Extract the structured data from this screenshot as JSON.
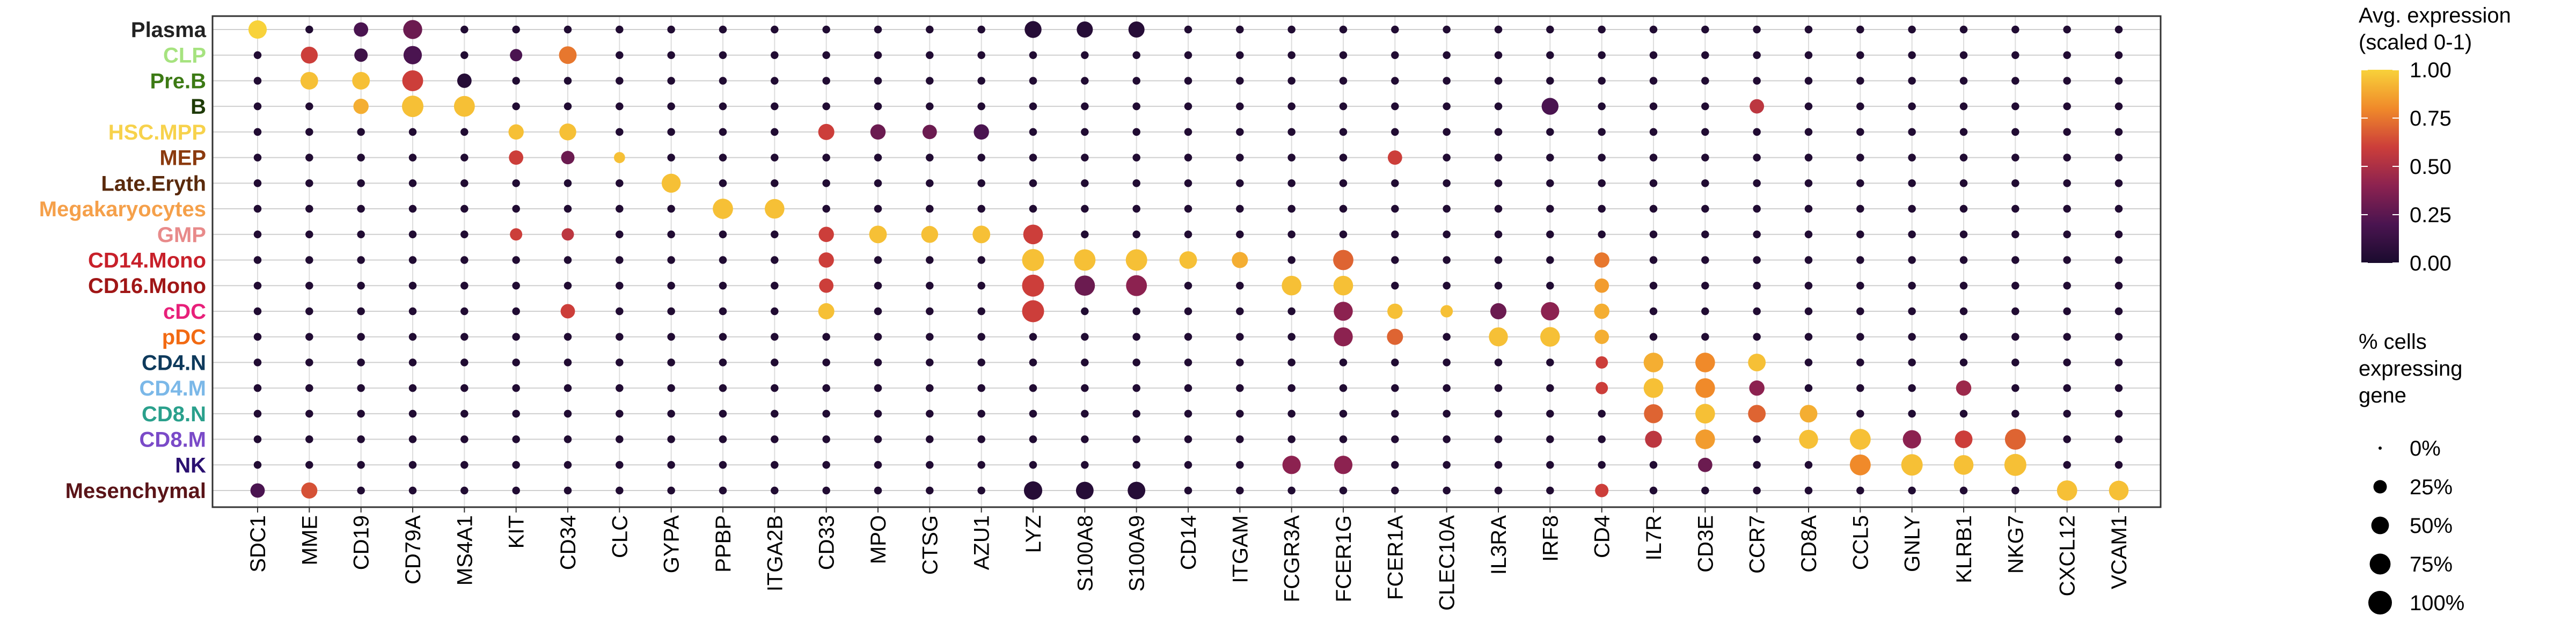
{
  "chart_data": {
    "type": "dotplot",
    "genes": [
      "SDC1",
      "MME",
      "CD19",
      "CD79A",
      "MS4A1",
      "KIT",
      "CD34",
      "CLC",
      "GYPA",
      "PPBP",
      "ITGA2B",
      "CD33",
      "MPO",
      "CTSG",
      "AZU1",
      "LYZ",
      "S100A8",
      "S100A9",
      "CD14",
      "ITGAM",
      "FCGR3A",
      "FCER1G",
      "FCER1A",
      "CLEC10A",
      "IL3RA",
      "IRF8",
      "CD4",
      "IL7R",
      "CD3E",
      "CCR7",
      "CD8A",
      "CCL5",
      "GNLY",
      "KLRB1",
      "NKG7",
      "CXCL12",
      "VCAM1"
    ],
    "cell_types": [
      {
        "name": "Plasma",
        "color": "#222222"
      },
      {
        "name": "CLP",
        "color": "#A6E37F"
      },
      {
        "name": "Pre.B",
        "color": "#3C7A14"
      },
      {
        "name": "B",
        "color": "#1E3A06"
      },
      {
        "name": "HSC.MPP",
        "color": "#F7D24C"
      },
      {
        "name": "MEP",
        "color": "#8B3A0E"
      },
      {
        "name": "Late.Eryth",
        "color": "#5A2A0C"
      },
      {
        "name": "Megakaryocytes",
        "color": "#F5A04A"
      },
      {
        "name": "GMP",
        "color": "#E88A8A"
      },
      {
        "name": "CD14.Mono",
        "color": "#C8202A"
      },
      {
        "name": "CD16.Mono",
        "color": "#A01616"
      },
      {
        "name": "cDC",
        "color": "#E8207A"
      },
      {
        "name": "pDC",
        "color": "#F26A12"
      },
      {
        "name": "CD4.N",
        "color": "#0E3A5C"
      },
      {
        "name": "CD4.M",
        "color": "#7BB8E8"
      },
      {
        "name": "CD8.N",
        "color": "#2AA08C"
      },
      {
        "name": "CD8.M",
        "color": "#7A4AC8"
      },
      {
        "name": "NK",
        "color": "#2A1070"
      },
      {
        "name": "Mesenchymal",
        "color": "#5A1418"
      }
    ],
    "points": [
      [
        "Plasma",
        "SDC1",
        1.0,
        0.55
      ],
      [
        "Plasma",
        "CD79A",
        0.3,
        0.6
      ],
      [
        "Plasma",
        "CD19",
        0.2,
        0.3
      ],
      [
        "Plasma",
        "LYZ",
        0.05,
        0.45
      ],
      [
        "Plasma",
        "S100A8",
        0.05,
        0.4
      ],
      [
        "Plasma",
        "S100A9",
        0.05,
        0.4
      ],
      [
        "CLP",
        "MME",
        0.6,
        0.45
      ],
      [
        "CLP",
        "CD79A",
        0.2,
        0.55
      ],
      [
        "CLP",
        "CD34",
        0.75,
        0.5
      ],
      [
        "CLP",
        "CD19",
        0.15,
        0.25
      ],
      [
        "CLP",
        "KIT",
        0.2,
        0.2
      ],
      [
        "Pre.B",
        "MME",
        0.95,
        0.5
      ],
      [
        "Pre.B",
        "CD19",
        0.95,
        0.5
      ],
      [
        "Pre.B",
        "CD79A",
        0.6,
        0.75
      ],
      [
        "Pre.B",
        "MS4A1",
        0.05,
        0.3
      ],
      [
        "B",
        "CD19",
        0.9,
        0.35
      ],
      [
        "B",
        "CD79A",
        0.95,
        0.8
      ],
      [
        "B",
        "MS4A1",
        0.95,
        0.75
      ],
      [
        "B",
        "IRF8",
        0.2,
        0.45
      ],
      [
        "B",
        "CCR7",
        0.55,
        0.3
      ],
      [
        "HSC.MPP",
        "KIT",
        0.95,
        0.35
      ],
      [
        "HSC.MPP",
        "CD34",
        0.95,
        0.45
      ],
      [
        "HSC.MPP",
        "CD33",
        0.6,
        0.4
      ],
      [
        "HSC.MPP",
        "MPO",
        0.3,
        0.35
      ],
      [
        "HSC.MPP",
        "CTSG",
        0.3,
        0.3
      ],
      [
        "HSC.MPP",
        "AZU1",
        0.2,
        0.35
      ],
      [
        "MEP",
        "KIT",
        0.6,
        0.3
      ],
      [
        "MEP",
        "CD34",
        0.3,
        0.25
      ],
      [
        "MEP",
        "CLC",
        0.95,
        0.15
      ],
      [
        "MEP",
        "FCER1A",
        0.6,
        0.3
      ],
      [
        "Late.Eryth",
        "GYPA",
        0.95,
        0.6
      ],
      [
        "Megakaryocytes",
        "PPBP",
        0.95,
        0.7
      ],
      [
        "Megakaryocytes",
        "ITGA2B",
        0.95,
        0.65
      ],
      [
        "GMP",
        "CD33",
        0.6,
        0.35
      ],
      [
        "GMP",
        "MPO",
        0.95,
        0.5
      ],
      [
        "GMP",
        "CTSG",
        0.95,
        0.45
      ],
      [
        "GMP",
        "AZU1",
        0.95,
        0.5
      ],
      [
        "GMP",
        "LYZ",
        0.6,
        0.65
      ],
      [
        "GMP",
        "KIT",
        0.6,
        0.2
      ],
      [
        "GMP",
        "CD34",
        0.55,
        0.2
      ],
      [
        "CD14.Mono",
        "LYZ",
        0.95,
        0.85
      ],
      [
        "CD14.Mono",
        "S100A8",
        0.95,
        0.8
      ],
      [
        "CD14.Mono",
        "S100A9",
        0.95,
        0.8
      ],
      [
        "CD14.Mono",
        "CD14",
        0.95,
        0.5
      ],
      [
        "CD14.Mono",
        "ITGAM",
        0.9,
        0.4
      ],
      [
        "CD14.Mono",
        "FCER1G",
        0.7,
        0.7
      ],
      [
        "CD14.Mono",
        "CD4",
        0.75,
        0.35
      ],
      [
        "CD14.Mono",
        "CD33",
        0.6,
        0.35
      ],
      [
        "CD16.Mono",
        "LYZ",
        0.6,
        0.85
      ],
      [
        "CD16.Mono",
        "S100A8",
        0.3,
        0.7
      ],
      [
        "CD16.Mono",
        "S100A9",
        0.4,
        0.75
      ],
      [
        "CD16.Mono",
        "FCGR3A",
        0.95,
        0.65
      ],
      [
        "CD16.Mono",
        "FCER1G",
        0.95,
        0.65
      ],
      [
        "CD16.Mono",
        "CD4",
        0.85,
        0.3
      ],
      [
        "CD16.Mono",
        "CD33",
        0.6,
        0.3
      ],
      [
        "cDC",
        "LYZ",
        0.6,
        0.85
      ],
      [
        "cDC",
        "CD33",
        0.95,
        0.4
      ],
      [
        "cDC",
        "FCER1A",
        0.95,
        0.35
      ],
      [
        "cDC",
        "CLEC10A",
        0.95,
        0.2
      ],
      [
        "cDC",
        "FCER1G",
        0.4,
        0.6
      ],
      [
        "cDC",
        "IRF8",
        0.4,
        0.55
      ],
      [
        "cDC",
        "CD4",
        0.9,
        0.35
      ],
      [
        "cDC",
        "CD34",
        0.6,
        0.3
      ],
      [
        "cDC",
        "IL3RA",
        0.3,
        0.4
      ],
      [
        "pDC",
        "IL3RA",
        0.95,
        0.6
      ],
      [
        "pDC",
        "IRF8",
        0.95,
        0.65
      ],
      [
        "pDC",
        "FCER1A",
        0.7,
        0.4
      ],
      [
        "pDC",
        "FCER1G",
        0.4,
        0.6
      ],
      [
        "pDC",
        "CD4",
        0.9,
        0.3
      ],
      [
        "CD4.N",
        "IL7R",
        0.9,
        0.65
      ],
      [
        "CD4.N",
        "CD3E",
        0.8,
        0.65
      ],
      [
        "CD4.N",
        "CCR7",
        0.95,
        0.5
      ],
      [
        "CD4.N",
        "CD4",
        0.6,
        0.2
      ],
      [
        "CD4.M",
        "IL7R",
        0.95,
        0.65
      ],
      [
        "CD4.M",
        "CD3E",
        0.8,
        0.65
      ],
      [
        "CD4.M",
        "CCR7",
        0.4,
        0.35
      ],
      [
        "CD4.M",
        "KLRB1",
        0.45,
        0.35
      ],
      [
        "CD4.M",
        "CD4",
        0.6,
        0.2
      ],
      [
        "CD8.N",
        "IL7R",
        0.7,
        0.6
      ],
      [
        "CD8.N",
        "CD3E",
        0.95,
        0.65
      ],
      [
        "CD8.N",
        "CCR7",
        0.7,
        0.5
      ],
      [
        "CD8.N",
        "CD8A",
        0.9,
        0.5
      ],
      [
        "CD8.M",
        "IL7R",
        0.55,
        0.45
      ],
      [
        "CD8.M",
        "CD3E",
        0.85,
        0.65
      ],
      [
        "CD8.M",
        "CD8A",
        0.95,
        0.6
      ],
      [
        "CD8.M",
        "CCL5",
        0.95,
        0.75
      ],
      [
        "CD8.M",
        "GNLY",
        0.4,
        0.55
      ],
      [
        "CD8.M",
        "KLRB1",
        0.6,
        0.5
      ],
      [
        "CD8.M",
        "NKG7",
        0.7,
        0.75
      ],
      [
        "NK",
        "CCL5",
        0.8,
        0.75
      ],
      [
        "NK",
        "GNLY",
        0.95,
        0.8
      ],
      [
        "NK",
        "KLRB1",
        0.95,
        0.65
      ],
      [
        "NK",
        "NKG7",
        0.95,
        0.85
      ],
      [
        "NK",
        "FCGR3A",
        0.4,
        0.55
      ],
      [
        "NK",
        "FCER1G",
        0.4,
        0.55
      ],
      [
        "NK",
        "CD3E",
        0.3,
        0.3
      ],
      [
        "Mesenchymal",
        "CXCL12",
        0.95,
        0.7
      ],
      [
        "Mesenchymal",
        "VCAM1",
        0.95,
        0.65
      ],
      [
        "Mesenchymal",
        "MME",
        0.65,
        0.4
      ],
      [
        "Mesenchymal",
        "SDC1",
        0.2,
        0.3
      ],
      [
        "Mesenchymal",
        "LYZ",
        0.05,
        0.55
      ],
      [
        "Mesenchymal",
        "S100A8",
        0.05,
        0.5
      ],
      [
        "Mesenchymal",
        "S100A9",
        0.05,
        0.5
      ],
      [
        "Mesenchymal",
        "CD4",
        0.6,
        0.25
      ]
    ],
    "background_dot": {
      "value": 0.03,
      "pct": 0.05
    },
    "color_legend": {
      "title_lines": [
        "Avg. expression",
        "(scaled 0-1)"
      ],
      "ticks": [
        "1.00",
        "0.75",
        "0.50",
        "0.25",
        "0.00"
      ],
      "range": [
        0,
        1
      ],
      "colormap": "inferno-like",
      "stops": [
        "#1a0b2e",
        "#4a1450",
        "#8c2250",
        "#cc3e3a",
        "#f08a2a",
        "#f8d23a"
      ]
    },
    "size_legend": {
      "title_lines": [
        "% cells",
        "expressing",
        "gene"
      ],
      "labels": [
        "0%",
        "25%",
        "50%",
        "75%",
        "100%"
      ],
      "values": [
        0,
        0.25,
        0.5,
        0.75,
        1.0
      ]
    }
  }
}
